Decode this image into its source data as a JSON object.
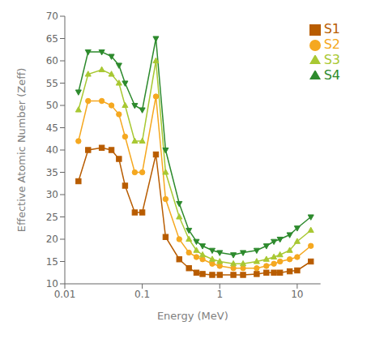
{
  "chart_data": {
    "type": "line",
    "xlabel": "Energy (MeV)",
    "ylabel": "Effective Atomic Number (Zeff)",
    "log": "x",
    "grid": false,
    "legend": "upper right",
    "xlim": [
      0.01,
      20
    ],
    "xticks": [
      0.01,
      0.1,
      1,
      10
    ],
    "ylim": [
      10,
      70
    ],
    "yticks": [
      10,
      15,
      20,
      25,
      30,
      35,
      40,
      45,
      50,
      55,
      60,
      65,
      70
    ],
    "series": [
      {
        "name": "S1",
        "color": "#b85c00",
        "marker": "square",
        "x": [
          0.015,
          0.02,
          0.03,
          0.04,
          0.05,
          0.06,
          0.08,
          0.1,
          0.15,
          0.2,
          0.3,
          0.4,
          0.5,
          0.6,
          0.8,
          1.0,
          1.5,
          2.0,
          3.0,
          4.0,
          5.0,
          6.0,
          8.0,
          10.0,
          15.0
        ],
        "values": [
          33,
          40,
          40.5,
          40,
          38,
          32,
          26,
          26,
          39,
          20.5,
          15.5,
          13.5,
          12.5,
          12.2,
          12.0,
          12.0,
          12.0,
          12.0,
          12.2,
          12.5,
          12.5,
          12.5,
          12.8,
          13.0,
          15.0
        ]
      },
      {
        "name": "S2",
        "color": "#f5a820",
        "marker": "circle",
        "x": [
          0.015,
          0.02,
          0.03,
          0.04,
          0.05,
          0.06,
          0.08,
          0.1,
          0.15,
          0.2,
          0.3,
          0.4,
          0.5,
          0.6,
          0.8,
          1.0,
          1.5,
          2.0,
          3.0,
          4.0,
          5.0,
          6.0,
          8.0,
          10.0,
          15.0
        ],
        "values": [
          42,
          51,
          51,
          50,
          48,
          43,
          35,
          35,
          52,
          29,
          20,
          17,
          16,
          15.5,
          14.5,
          14.0,
          13.5,
          13.5,
          13.5,
          14.0,
          14.5,
          15.0,
          15.5,
          16.0,
          18.5
        ]
      },
      {
        "name": "S3",
        "color": "#a8c832",
        "marker": "triangle",
        "x": [
          0.015,
          0.02,
          0.03,
          0.04,
          0.05,
          0.06,
          0.08,
          0.1,
          0.15,
          0.2,
          0.3,
          0.4,
          0.5,
          0.6,
          0.8,
          1.0,
          1.5,
          2.0,
          3.0,
          4.0,
          5.0,
          6.0,
          8.0,
          10.0,
          15.0
        ],
        "values": [
          49,
          57,
          58,
          57,
          55,
          50,
          42,
          42,
          60,
          35,
          25,
          20,
          17.5,
          16.5,
          15.5,
          15.0,
          14.5,
          14.5,
          15.0,
          15.5,
          16.0,
          16.5,
          17.5,
          19.5,
          22.0
        ]
      },
      {
        "name": "S4",
        "color": "#2d8a2d",
        "marker": "triangle-down",
        "x": [
          0.015,
          0.02,
          0.03,
          0.04,
          0.05,
          0.06,
          0.08,
          0.1,
          0.15,
          0.2,
          0.3,
          0.4,
          0.5,
          0.6,
          0.8,
          1.0,
          1.5,
          2.0,
          3.0,
          4.0,
          5.0,
          6.0,
          8.0,
          10.0,
          15.0
        ],
        "values": [
          53,
          62,
          62,
          61,
          59,
          55,
          50,
          49,
          65,
          40,
          28,
          22,
          19.5,
          18.5,
          17.5,
          17.0,
          16.5,
          17.0,
          17.5,
          18.5,
          19.5,
          20.0,
          21.0,
          22.5,
          25.0
        ]
      }
    ]
  }
}
